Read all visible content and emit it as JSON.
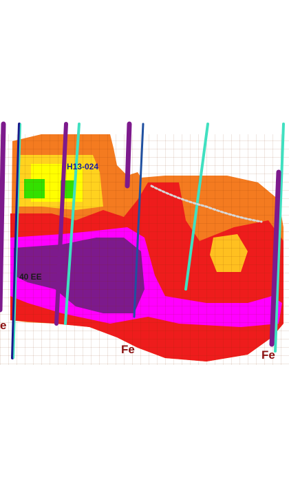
{
  "labels": {
    "drillhole": "H13-024",
    "zone": "40 EE",
    "element_left": "e",
    "element_center": "Fe",
    "element_right": "Fe"
  }
}
